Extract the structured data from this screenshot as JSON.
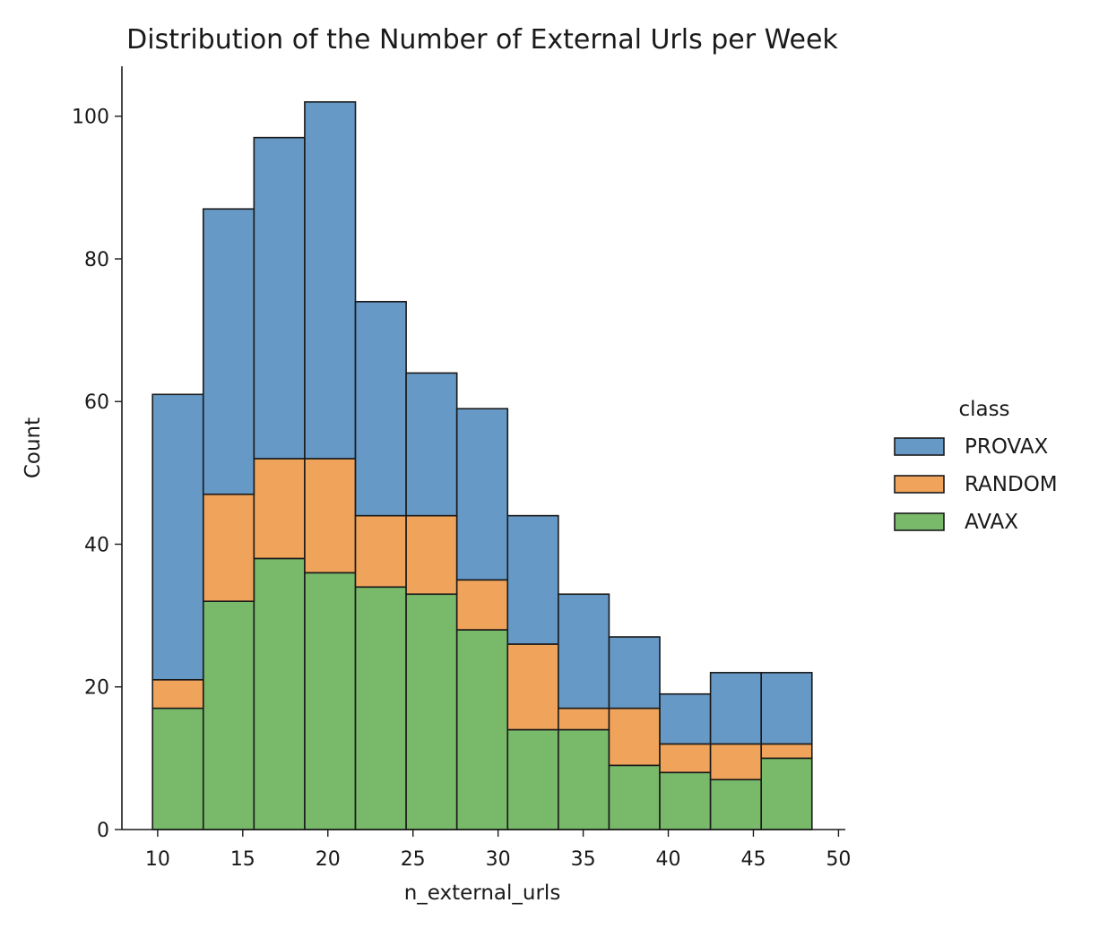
{
  "chart_data": {
    "type": "bar",
    "stacked": true,
    "title": "Distribution of the Number of External Urls per Week",
    "xlabel": "n_external_urls",
    "ylabel": "Count",
    "xlim": [
      7.9,
      50.4
    ],
    "ylim": [
      0,
      107
    ],
    "xticks": [
      10,
      15,
      20,
      25,
      30,
      35,
      40,
      45,
      50
    ],
    "yticks": [
      0,
      20,
      40,
      60,
      80,
      100
    ],
    "grid": false,
    "bin_edges": [
      9.7,
      12.68,
      15.66,
      18.64,
      21.62,
      24.6,
      27.58,
      30.56,
      33.54,
      36.52,
      39.5,
      42.48,
      45.46,
      48.44
    ],
    "series": [
      {
        "name": "AVAX",
        "color": "#78b96a",
        "values": [
          17,
          32,
          38,
          36,
          34,
          33,
          28,
          14,
          14,
          9,
          8,
          7,
          10
        ]
      },
      {
        "name": "RANDOM",
        "color": "#f0a35b",
        "values": [
          4,
          15,
          14,
          16,
          10,
          11,
          7,
          12,
          3,
          8,
          4,
          5,
          2
        ]
      },
      {
        "name": "PROVAX",
        "color": "#6699c6",
        "values": [
          40,
          40,
          45,
          50,
          30,
          20,
          24,
          18,
          16,
          10,
          7,
          10,
          10
        ]
      }
    ],
    "legend": {
      "title": "class",
      "placement": "right",
      "order": [
        "PROVAX",
        "RANDOM",
        "AVAX"
      ]
    }
  }
}
